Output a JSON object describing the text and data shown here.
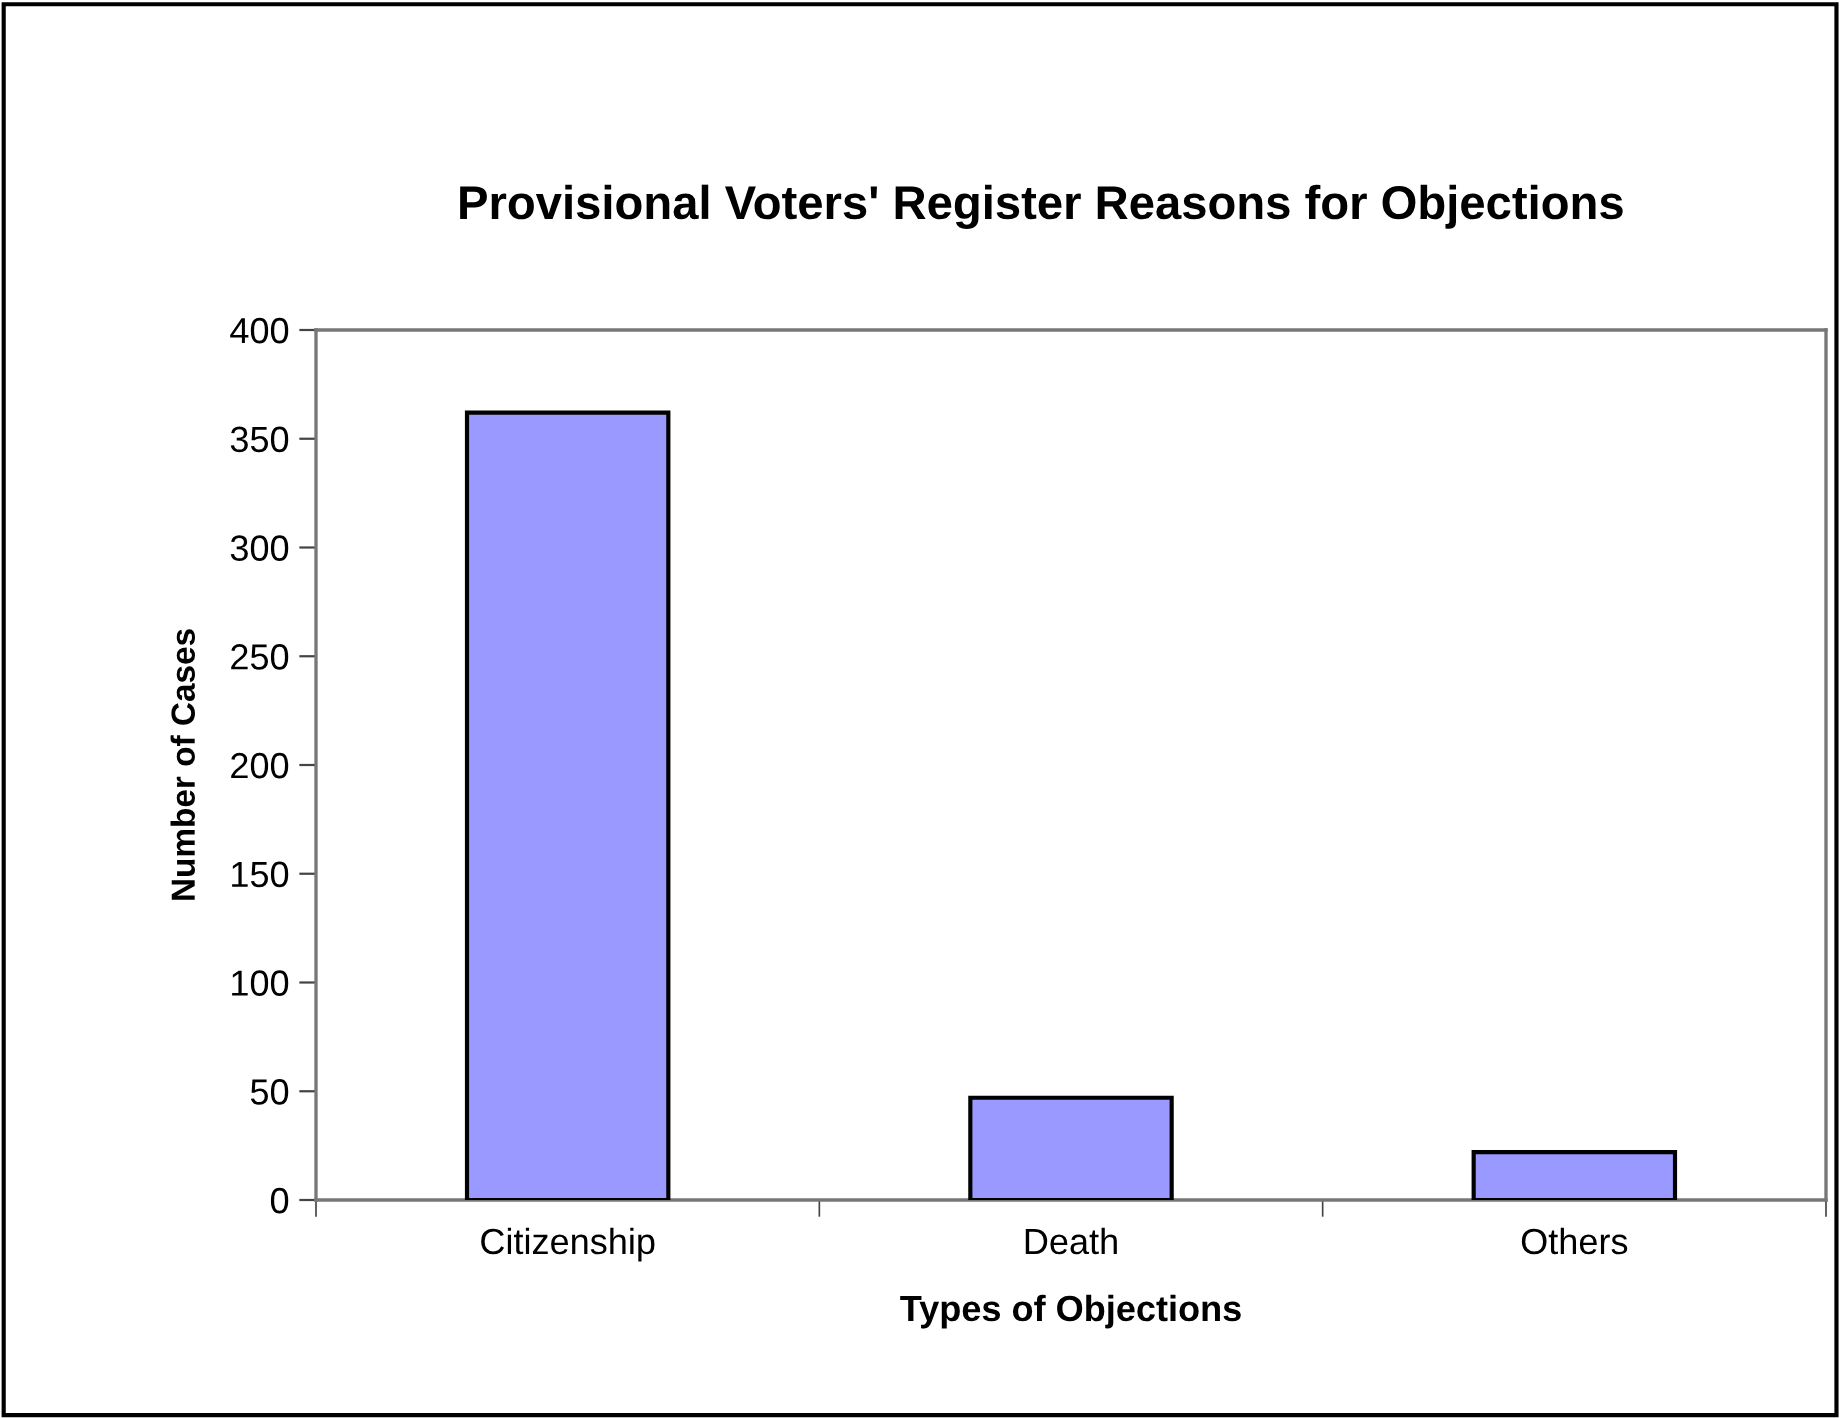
{
  "chart_data": {
    "type": "bar",
    "title": "Provisional Voters' Register Reasons for Objections",
    "xlabel": "Types of Objections",
    "ylabel": "Number of Cases",
    "categories": [
      "Citizenship",
      "Death",
      "Others"
    ],
    "values": [
      362,
      47,
      22
    ],
    "color": "#9999ff",
    "ylim": [
      0,
      400
    ],
    "yticks": [
      0,
      50,
      100,
      150,
      200,
      250,
      300,
      350,
      400
    ],
    "grid": false,
    "legend": false
  }
}
